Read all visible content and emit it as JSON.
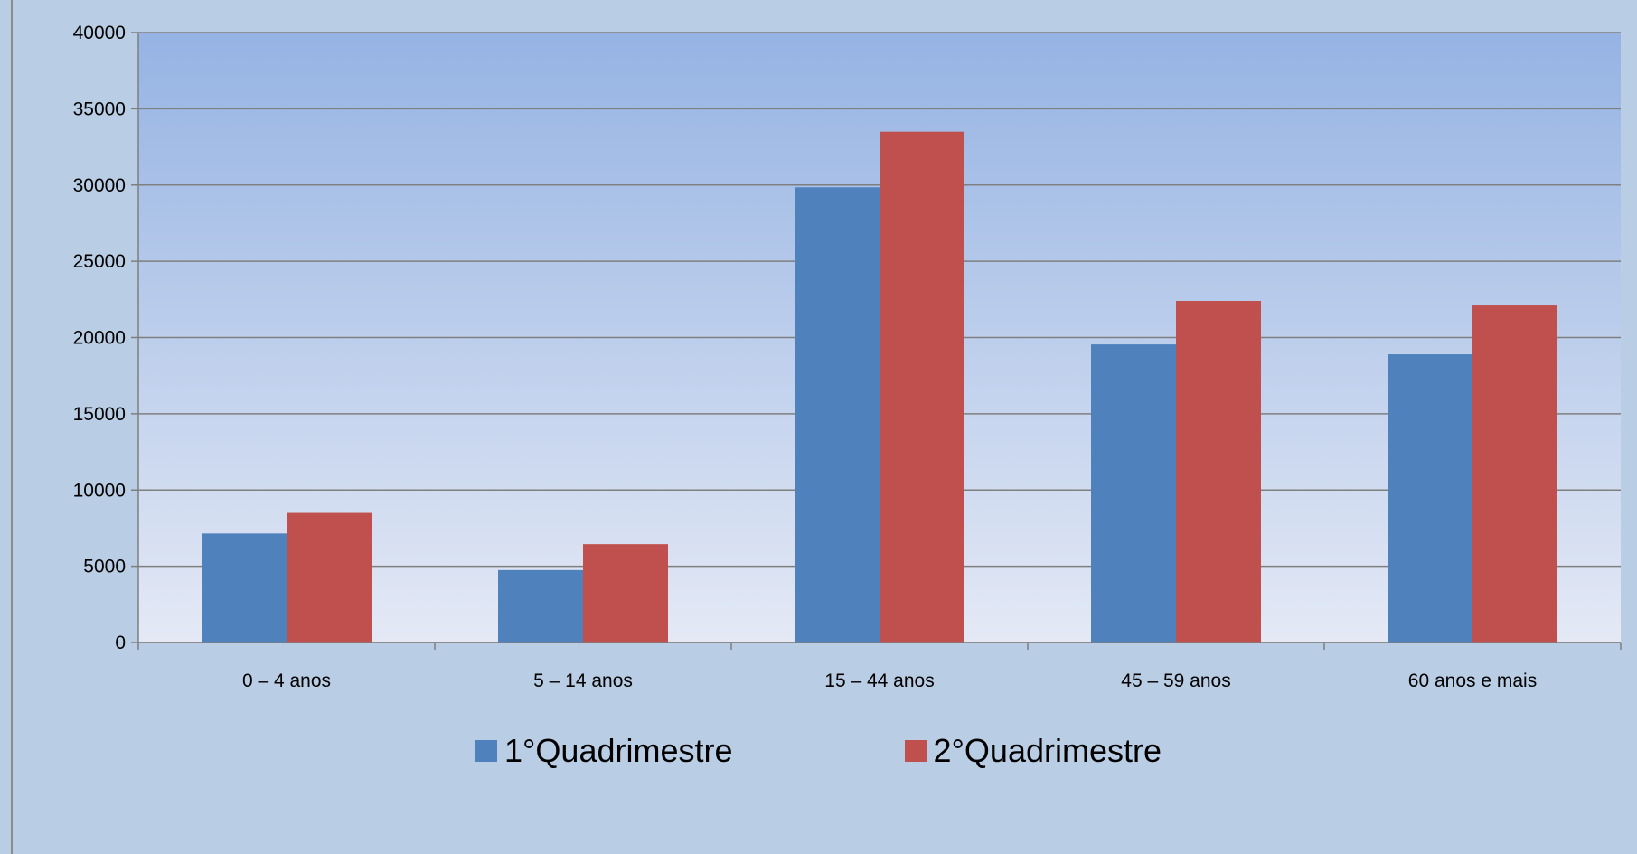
{
  "chart_data": {
    "type": "bar",
    "categories": [
      "0 – 4 anos",
      "5 – 14 anos",
      "15 – 44 anos",
      "45 – 59 anos",
      "60 anos e mais"
    ],
    "series": [
      {
        "name": "1°Quadrimestre",
        "values": [
          7150,
          4750,
          29850,
          19550,
          18900
        ],
        "color": "#4f81bd"
      },
      {
        "name": "2°Quadrimestre",
        "values": [
          8500,
          6450,
          33500,
          22400,
          22100
        ],
        "color": "#c0504d"
      }
    ],
    "ylim": [
      0,
      40000
    ],
    "yticks": [
      0,
      5000,
      10000,
      15000,
      20000,
      25000,
      30000,
      35000,
      40000
    ],
    "grid": true,
    "legend_position": "bottom",
    "title": "",
    "xlabel": "",
    "ylabel": ""
  },
  "colors": {
    "background": "#b9cde4",
    "plot_top": "#95b3e3",
    "plot_bottom": "#e4e9f5",
    "gridline": "#7f7f7f"
  }
}
